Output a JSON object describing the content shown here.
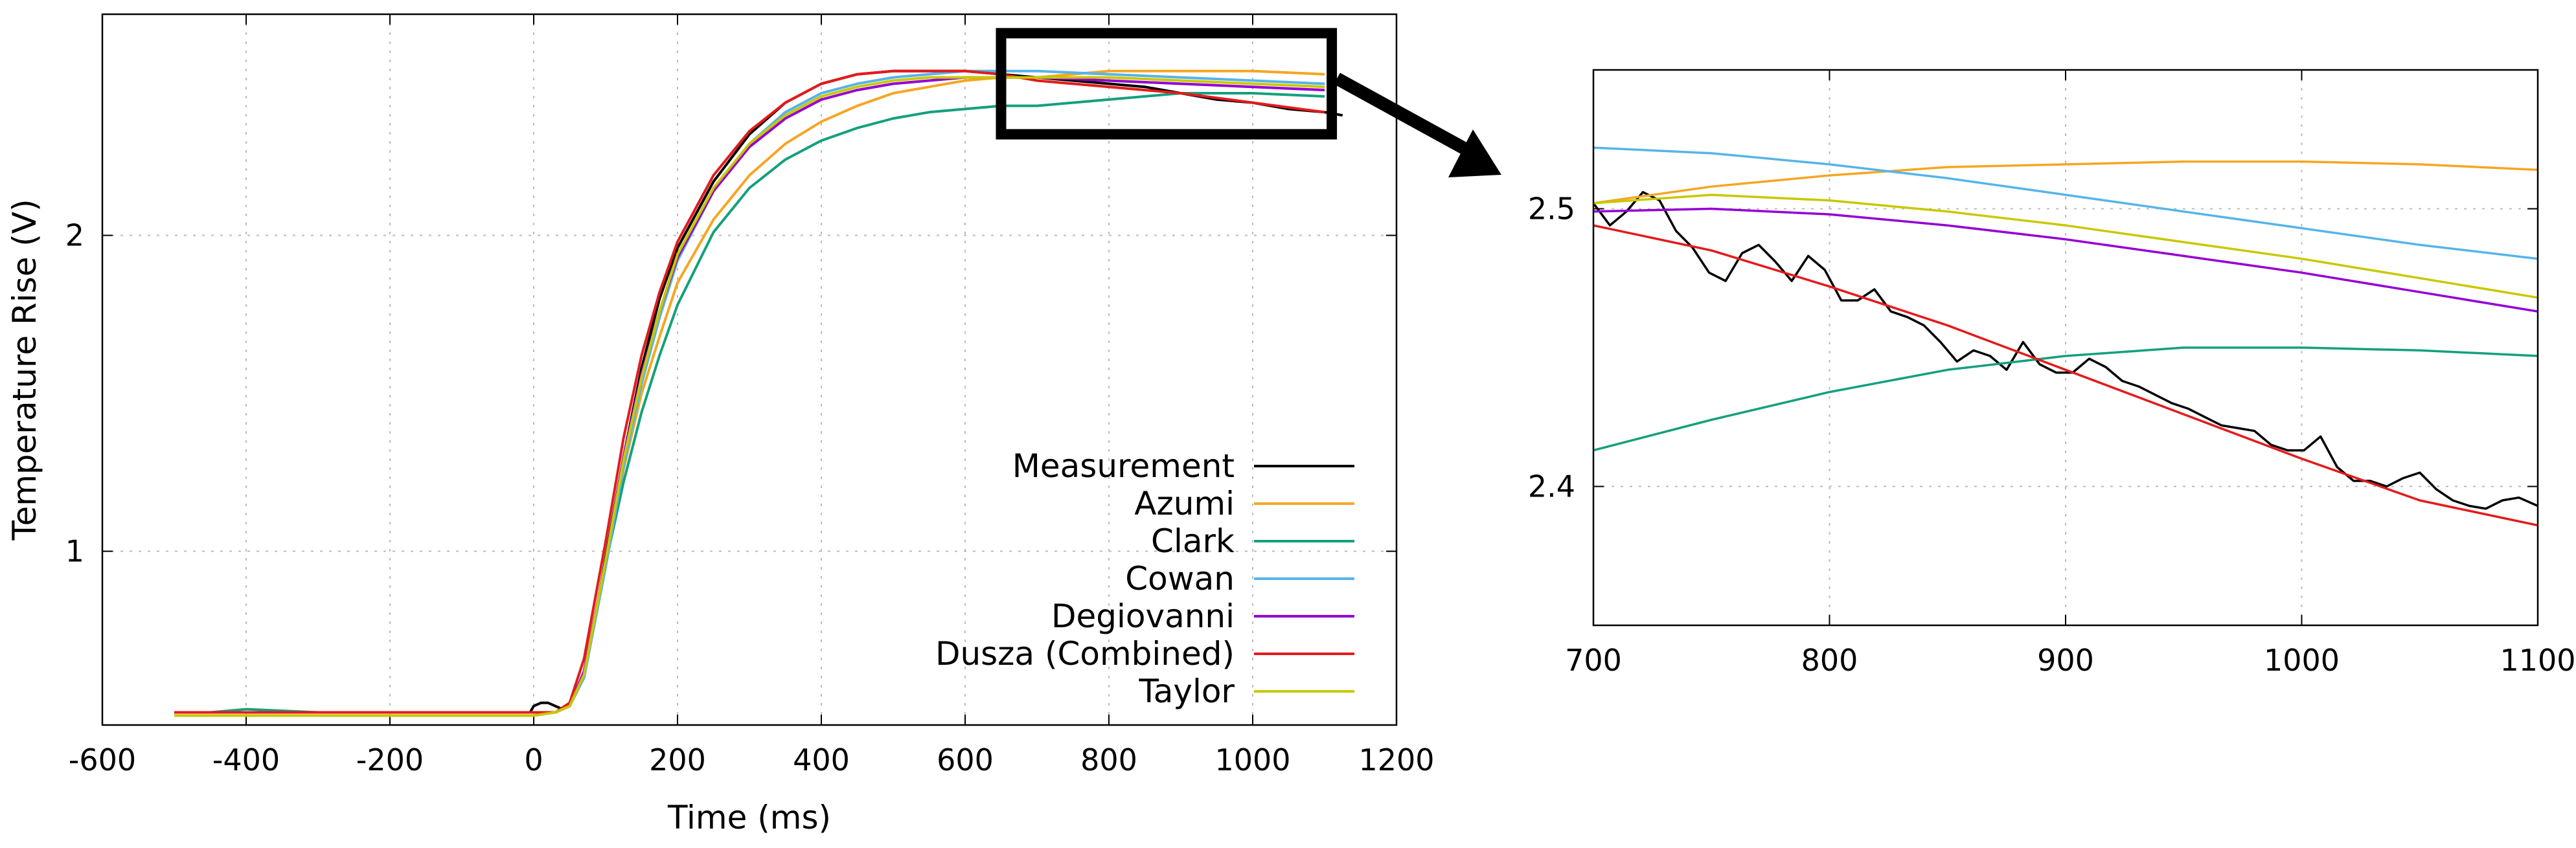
{
  "chart_data": [
    {
      "type": "line",
      "xlabel": "Time (ms)",
      "ylabel": "Temperature Rise (V)",
      "xlim": [
        -600,
        1200
      ],
      "ylim": [
        0.45,
        2.7
      ],
      "x_ticks": [
        -600,
        -400,
        -200,
        0,
        200,
        400,
        600,
        800,
        1000,
        1200
      ],
      "y_ticks": [
        1,
        2
      ],
      "grid": true,
      "legend_position": "bottom-right",
      "zoom_box": {
        "x_range": [
          650,
          1110
        ],
        "y_range": [
          2.32,
          2.64
        ]
      },
      "series": [
        {
          "name": "Measurement",
          "color": "#000000",
          "x": [
            -500,
            -450,
            -400,
            -300,
            -200,
            -100,
            -50,
            -5,
            0,
            10,
            20,
            30,
            40,
            50,
            60,
            70,
            80,
            90,
            100,
            125,
            150,
            175,
            200,
            250,
            300,
            350,
            400,
            450,
            500,
            550,
            600,
            650,
            700,
            750,
            800,
            850,
            900,
            950,
            1000,
            1050,
            1100,
            1125
          ],
          "y": [
            0.49,
            0.49,
            0.49,
            0.49,
            0.49,
            0.49,
            0.49,
            0.49,
            0.51,
            0.52,
            0.52,
            0.51,
            0.5,
            0.51,
            0.56,
            0.62,
            0.72,
            0.85,
            0.98,
            1.3,
            1.58,
            1.8,
            1.96,
            2.17,
            2.32,
            2.42,
            2.48,
            2.51,
            2.52,
            2.52,
            2.52,
            2.51,
            2.5,
            2.49,
            2.48,
            2.47,
            2.45,
            2.43,
            2.42,
            2.4,
            2.39,
            2.38
          ]
        },
        {
          "name": "Azumi",
          "color": "#F5A623",
          "x": [
            -500,
            -400,
            -300,
            -200,
            -100,
            0,
            30,
            50,
            70,
            100,
            125,
            150,
            175,
            200,
            250,
            300,
            350,
            400,
            450,
            500,
            550,
            600,
            650,
            700,
            800,
            900,
            1000,
            1100
          ],
          "y": [
            0.48,
            0.48,
            0.48,
            0.48,
            0.48,
            0.48,
            0.49,
            0.51,
            0.6,
            0.95,
            1.26,
            1.5,
            1.68,
            1.85,
            2.05,
            2.19,
            2.29,
            2.36,
            2.41,
            2.45,
            2.47,
            2.49,
            2.5,
            2.5,
            2.52,
            2.52,
            2.52,
            2.51
          ]
        },
        {
          "name": "Clark",
          "color": "#14A07D",
          "x": [
            -500,
            -450,
            -400,
            -300,
            -200,
            -100,
            0,
            30,
            50,
            70,
            100,
            125,
            150,
            175,
            200,
            250,
            300,
            350,
            400,
            450,
            500,
            550,
            600,
            650,
            700,
            800,
            900,
            1000,
            1100
          ],
          "y": [
            0.49,
            0.49,
            0.5,
            0.49,
            0.49,
            0.49,
            0.49,
            0.49,
            0.51,
            0.62,
            0.96,
            1.22,
            1.44,
            1.62,
            1.78,
            2.01,
            2.15,
            2.24,
            2.3,
            2.34,
            2.37,
            2.39,
            2.4,
            2.41,
            2.41,
            2.43,
            2.45,
            2.45,
            2.44
          ]
        },
        {
          "name": "Cowan",
          "color": "#56B4E9",
          "x": [
            -500,
            -400,
            -300,
            -200,
            -100,
            0,
            30,
            50,
            70,
            100,
            125,
            150,
            175,
            200,
            250,
            300,
            350,
            400,
            450,
            500,
            550,
            600,
            650,
            700,
            800,
            900,
            1000,
            1100
          ],
          "y": [
            0.49,
            0.49,
            0.49,
            0.49,
            0.49,
            0.49,
            0.49,
            0.51,
            0.6,
            0.95,
            1.27,
            1.53,
            1.74,
            1.92,
            2.14,
            2.29,
            2.39,
            2.45,
            2.48,
            2.5,
            2.51,
            2.52,
            2.52,
            2.52,
            2.51,
            2.5,
            2.49,
            2.48
          ]
        },
        {
          "name": "Degiovanni",
          "color": "#9400D3",
          "x": [
            -500,
            -400,
            -300,
            -200,
            -100,
            0,
            30,
            50,
            70,
            100,
            125,
            150,
            175,
            200,
            250,
            300,
            350,
            400,
            450,
            500,
            550,
            600,
            650,
            700,
            800,
            900,
            1000,
            1100
          ],
          "y": [
            0.49,
            0.49,
            0.49,
            0.49,
            0.49,
            0.49,
            0.49,
            0.51,
            0.62,
            0.97,
            1.3,
            1.56,
            1.76,
            1.93,
            2.14,
            2.28,
            2.37,
            2.43,
            2.46,
            2.48,
            2.49,
            2.5,
            2.5,
            2.5,
            2.49,
            2.48,
            2.47,
            2.46
          ]
        },
        {
          "name": "Dusza (Combined)",
          "color": "#E41A1C",
          "x": [
            -500,
            -400,
            -300,
            -200,
            -100,
            0,
            30,
            50,
            70,
            100,
            125,
            150,
            175,
            200,
            250,
            300,
            350,
            400,
            450,
            500,
            550,
            600,
            650,
            700,
            800,
            900,
            1000,
            1100
          ],
          "y": [
            0.49,
            0.49,
            0.49,
            0.49,
            0.49,
            0.49,
            0.49,
            0.52,
            0.66,
            1.03,
            1.36,
            1.62,
            1.82,
            1.98,
            2.19,
            2.33,
            2.42,
            2.48,
            2.51,
            2.52,
            2.52,
            2.52,
            2.51,
            2.49,
            2.47,
            2.45,
            2.42,
            2.39
          ]
        },
        {
          "name": "Taylor",
          "color": "#C8C800",
          "x": [
            -500,
            -400,
            -300,
            -200,
            -100,
            0,
            30,
            50,
            70,
            100,
            125,
            150,
            175,
            200,
            250,
            300,
            350,
            400,
            450,
            500,
            550,
            600,
            650,
            700,
            800,
            900,
            1000,
            1100
          ],
          "y": [
            0.48,
            0.48,
            0.48,
            0.48,
            0.48,
            0.48,
            0.49,
            0.51,
            0.61,
            0.97,
            1.29,
            1.55,
            1.76,
            1.94,
            2.15,
            2.29,
            2.38,
            2.44,
            2.47,
            2.49,
            2.5,
            2.5,
            2.5,
            2.5,
            2.5,
            2.49,
            2.48,
            2.47
          ]
        }
      ]
    },
    {
      "type": "line",
      "xlabel": "",
      "ylabel": "",
      "xlim": [
        700,
        1100
      ],
      "ylim": [
        2.35,
        2.55
      ],
      "x_ticks": [
        700,
        800,
        900,
        1000,
        1100
      ],
      "y_ticks": [
        2.4,
        2.5
      ],
      "y_tick_labels": [
        "2.4",
        "2.5"
      ],
      "grid": true,
      "series": [
        {
          "name": "Measurement",
          "color": "#000000",
          "x": [
            700,
            707,
            714,
            721,
            728,
            735,
            742,
            749,
            756,
            763,
            770,
            777,
            784,
            791,
            798,
            805,
            812,
            819,
            826,
            833,
            840,
            847,
            854,
            861,
            868,
            875,
            882,
            889,
            896,
            903,
            910,
            917,
            924,
            931,
            938,
            945,
            952,
            959,
            966,
            973,
            980,
            987,
            994,
            1001,
            1008,
            1015,
            1022,
            1029,
            1036,
            1043,
            1050,
            1057,
            1064,
            1071,
            1078,
            1085,
            1092,
            1100
          ],
          "y": [
            2.502,
            2.494,
            2.499,
            2.506,
            2.503,
            2.492,
            2.486,
            2.477,
            2.474,
            2.484,
            2.487,
            2.481,
            2.474,
            2.483,
            2.478,
            2.467,
            2.467,
            2.471,
            2.463,
            2.461,
            2.458,
            2.452,
            2.445,
            2.449,
            2.447,
            2.442,
            2.452,
            2.444,
            2.441,
            2.441,
            2.446,
            2.443,
            2.438,
            2.436,
            2.433,
            2.43,
            2.428,
            2.425,
            2.422,
            2.421,
            2.42,
            2.415,
            2.413,
            2.413,
            2.418,
            2.407,
            2.402,
            2.402,
            2.4,
            2.403,
            2.405,
            2.399,
            2.395,
            2.393,
            2.392,
            2.395,
            2.396,
            2.393
          ]
        },
        {
          "name": "Azumi",
          "color": "#F5A623",
          "x": [
            700,
            750,
            800,
            850,
            900,
            950,
            1000,
            1050,
            1100
          ],
          "y": [
            2.502,
            2.508,
            2.512,
            2.515,
            2.516,
            2.517,
            2.517,
            2.516,
            2.514
          ]
        },
        {
          "name": "Clark",
          "color": "#14A07D",
          "x": [
            700,
            750,
            800,
            850,
            900,
            950,
            1000,
            1050,
            1100
          ],
          "y": [
            2.413,
            2.424,
            2.434,
            2.442,
            2.447,
            2.45,
            2.45,
            2.449,
            2.447
          ]
        },
        {
          "name": "Cowan",
          "color": "#56B4E9",
          "x": [
            700,
            750,
            800,
            850,
            900,
            950,
            1000,
            1050,
            1100
          ],
          "y": [
            2.522,
            2.52,
            2.516,
            2.511,
            2.505,
            2.499,
            2.493,
            2.487,
            2.482
          ]
        },
        {
          "name": "Degiovanni",
          "color": "#9400D3",
          "x": [
            700,
            750,
            800,
            850,
            900,
            950,
            1000,
            1050,
            1100
          ],
          "y": [
            2.499,
            2.5,
            2.498,
            2.494,
            2.489,
            2.483,
            2.477,
            2.47,
            2.463
          ]
        },
        {
          "name": "Dusza (Combined)",
          "color": "#E41A1C",
          "x": [
            700,
            750,
            800,
            850,
            900,
            950,
            1000,
            1050,
            1100
          ],
          "y": [
            2.494,
            2.485,
            2.472,
            2.458,
            2.442,
            2.426,
            2.41,
            2.395,
            2.386
          ]
        },
        {
          "name": "Taylor",
          "color": "#C8C800",
          "x": [
            700,
            750,
            800,
            850,
            900,
            950,
            1000,
            1050,
            1100
          ],
          "y": [
            2.502,
            2.505,
            2.503,
            2.499,
            2.494,
            2.488,
            2.482,
            2.475,
            2.468
          ]
        }
      ]
    }
  ]
}
